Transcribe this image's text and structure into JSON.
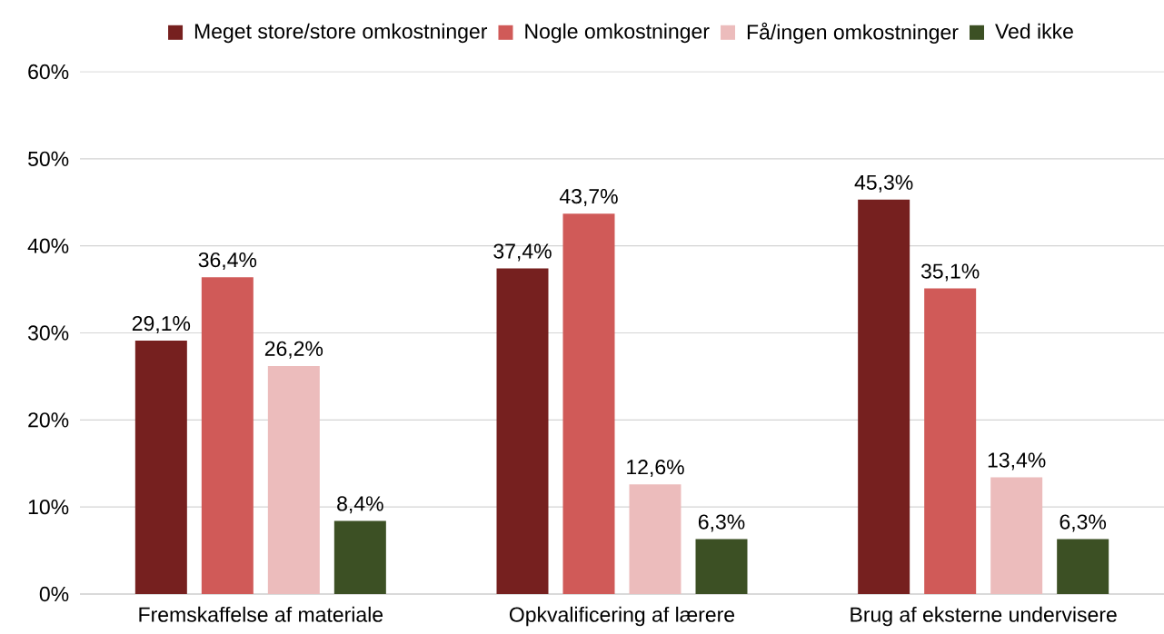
{
  "chart_data": {
    "type": "bar",
    "categories": [
      "Fremskaffelse af materiale",
      "Opkvalificering af lærere",
      "Brug af eksterne undervisere"
    ],
    "series": [
      {
        "name": "Meget store/store omkostninger",
        "color": "#76201f",
        "values": [
          29.1,
          37.4,
          45.3
        ],
        "value_labels": [
          "29,1%",
          "37,4%",
          "45,3%"
        ]
      },
      {
        "name": "Nogle omkostninger",
        "color": "#d05a58",
        "values": [
          36.4,
          43.7,
          35.1
        ],
        "value_labels": [
          "36,4%",
          "43,7%",
          "35,1%"
        ]
      },
      {
        "name": "Få/ingen omkostninger",
        "color": "#ecbcbc",
        "values": [
          26.2,
          12.6,
          13.4
        ],
        "value_labels": [
          "26,2%",
          "12,6%",
          "13,4%"
        ]
      },
      {
        "name": "Ved ikke",
        "color": "#3c5024",
        "values": [
          8.4,
          6.3,
          6.3
        ],
        "value_labels": [
          "8,4%",
          "6,3%",
          "6,3%"
        ]
      }
    ],
    "ylim": [
      0,
      60
    ],
    "yticks": [
      {
        "value": 0,
        "label": "0%"
      },
      {
        "value": 10,
        "label": "10%"
      },
      {
        "value": 20,
        "label": "20%"
      },
      {
        "value": 30,
        "label": "30%"
      },
      {
        "value": 40,
        "label": "40%"
      },
      {
        "value": 50,
        "label": "50%"
      },
      {
        "value": 60,
        "label": "60%"
      }
    ],
    "grid": "y",
    "legend": "top"
  }
}
